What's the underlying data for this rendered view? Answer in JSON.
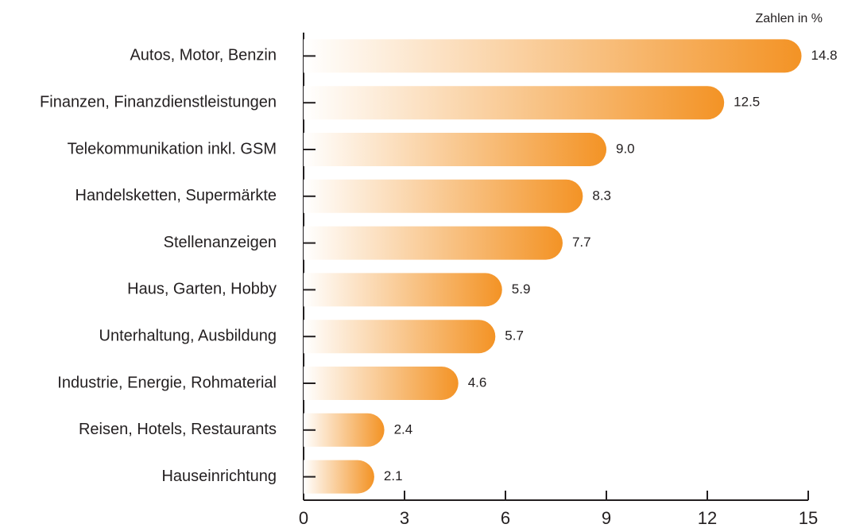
{
  "chart_data": {
    "type": "bar",
    "orientation": "horizontal",
    "annotation": "Zahlen in %",
    "categories": [
      "Autos, Motor, Benzin",
      "Finanzen, Finanzdienstleistungen",
      "Telekommunikation inkl. GSM",
      "Handelsketten, Supermärkte",
      "Stellenanzeigen",
      "Haus, Garten, Hobby",
      "Unterhaltung, Ausbildung",
      "Industrie, Energie, Rohmaterial",
      "Reisen, Hotels, Restaurants",
      "Hauseinrichtung"
    ],
    "values": [
      14.8,
      12.5,
      9.0,
      8.3,
      7.7,
      5.9,
      5.7,
      4.6,
      2.4,
      2.1
    ],
    "value_labels": [
      "14.8",
      "12.5",
      "9.0",
      "8.3",
      "7.7",
      "5.9",
      "5.7",
      "4.6",
      "2.4",
      "2.1"
    ],
    "color": "#f39325",
    "xlim": [
      0,
      15
    ],
    "xticks": [
      0,
      3,
      6,
      9,
      12,
      15
    ]
  }
}
